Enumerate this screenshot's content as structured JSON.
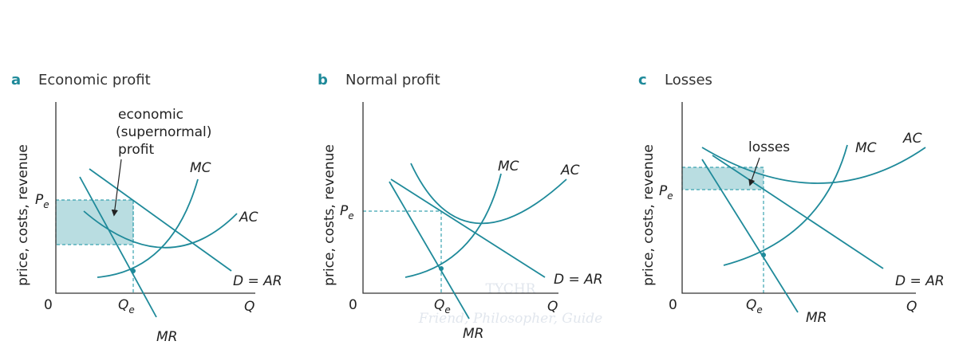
{
  "panels": [
    {
      "letter": "a",
      "title": "Economic profit",
      "y_axis_label": "price, costs, revenue",
      "origin": "0",
      "x_axis_label": "Q",
      "price_label": {
        "main": "P",
        "sub": "e"
      },
      "quantity_label": {
        "main": "Q",
        "sub": "e"
      },
      "curves": [
        "MC",
        "AC",
        "D = AR",
        "MR"
      ],
      "annotation": [
        "economic",
        "(supernormal)",
        "profit"
      ]
    },
    {
      "letter": "b",
      "title": "Normal profit",
      "y_axis_label": "price, costs, revenue",
      "origin": "0",
      "x_axis_label": "Q",
      "price_label": {
        "main": "P",
        "sub": "e"
      },
      "quantity_label": {
        "main": "Q",
        "sub": "e"
      },
      "curves": [
        "MC",
        "AC",
        "D = AR",
        "MR"
      ]
    },
    {
      "letter": "c",
      "title": "Losses",
      "y_axis_label": "price, costs, revenue",
      "origin": "0",
      "x_axis_label": "Q",
      "price_label": {
        "main": "P",
        "sub": "e"
      },
      "quantity_label": {
        "main": "Q",
        "sub": "e"
      },
      "curves": [
        "MC",
        "AC",
        "D = AR",
        "MR"
      ],
      "annotation": [
        "losses"
      ]
    }
  ],
  "watermark": {
    "logo_text": "TYCHR",
    "tagline": "Friend, Philosopher, Guide"
  }
}
